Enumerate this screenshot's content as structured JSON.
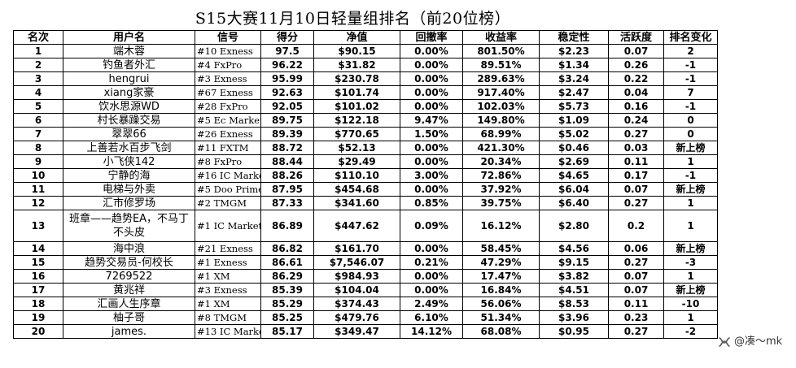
{
  "title": "S15大赛11月10日轻量组排名（前20位榜）",
  "headers": [
    "名次",
    "用户名",
    "信号",
    "得分",
    "净值",
    "回撤率",
    "收益率",
    "稳定性",
    "活跃度",
    "排名变化"
  ],
  "rows": [
    {
      "rank": "1",
      "user": "端木蓉",
      "signal": "#10 Exness",
      "score": "97.5",
      "equity": "$90.15",
      "drawdown": "0.00%",
      "return": "801.50%",
      "stability": "$2.23",
      "activity": "0.07",
      "change": "2"
    },
    {
      "rank": "2",
      "user": "钓鱼者外汇",
      "signal": "#4 FxPro",
      "score": "96.22",
      "equity": "$31.82",
      "drawdown": "0.00%",
      "return": "89.51%",
      "stability": "$1.34",
      "activity": "0.26",
      "change": "-1"
    },
    {
      "rank": "3",
      "user": "hengrui",
      "signal": "#3 Exness",
      "score": "95.99",
      "equity": "$230.78",
      "drawdown": "0.00%",
      "return": "289.63%",
      "stability": "$3.24",
      "activity": "0.22",
      "change": "-1"
    },
    {
      "rank": "4",
      "user": "xiang家豪",
      "signal": "#67 Exness",
      "score": "92.63",
      "equity": "$101.74",
      "drawdown": "0.00%",
      "return": "917.40%",
      "stability": "$2.47",
      "activity": "0.04",
      "change": "7"
    },
    {
      "rank": "5",
      "user": "饮水思源WD",
      "signal": "#28 FxPro",
      "score": "92.05",
      "equity": "$101.02",
      "drawdown": "0.00%",
      "return": "102.03%",
      "stability": "$5.73",
      "activity": "0.16",
      "change": "-1"
    },
    {
      "rank": "6",
      "user": "村长暴躁交易",
      "signal": "#5 Ec Markets",
      "score": "89.75",
      "equity": "$122.18",
      "drawdown": "9.47%",
      "return": "149.80%",
      "stability": "$1.09",
      "activity": "0.24",
      "change": "0"
    },
    {
      "rank": "7",
      "user": "翠翠66",
      "signal": "#26 Exness",
      "score": "89.39",
      "equity": "$770.65",
      "drawdown": "1.50%",
      "return": "68.99%",
      "stability": "$5.02",
      "activity": "0.27",
      "change": "0"
    },
    {
      "rank": "8",
      "user": "上善若水百步飞剑",
      "signal": "#11 FXTM",
      "score": "88.72",
      "equity": "$52.13",
      "drawdown": "0.00%",
      "return": "421.30%",
      "stability": "$0.46",
      "activity": "0.03",
      "change": "新上榜"
    },
    {
      "rank": "9",
      "user": "小飞侠142",
      "signal": "#8 FxPro",
      "score": "88.44",
      "equity": "$29.49",
      "drawdown": "0.00%",
      "return": "20.34%",
      "stability": "$2.69",
      "activity": "0.11",
      "change": "1"
    },
    {
      "rank": "10",
      "user": "宁静的海",
      "signal": "#16 IC Markets",
      "score": "88.26",
      "equity": "$110.10",
      "drawdown": "3.00%",
      "return": "72.86%",
      "stability": "$4.65",
      "activity": "0.17",
      "change": "-1"
    },
    {
      "rank": "11",
      "user": "电梯与外卖",
      "signal": "#5 Doo Prime",
      "score": "87.95",
      "equity": "$454.68",
      "drawdown": "0.00%",
      "return": "37.92%",
      "stability": "$6.04",
      "activity": "0.07",
      "change": "新上榜"
    },
    {
      "rank": "12",
      "user": "汇市修罗场",
      "signal": "#2 TMGM",
      "score": "87.33",
      "equity": "$341.60",
      "drawdown": "0.85%",
      "return": "39.75%",
      "stability": "$6.40",
      "activity": "0.27",
      "change": "1"
    },
    {
      "rank": "13",
      "user": "班章——趋势EA，不马丁不头皮",
      "signal": "#1 IC Markets",
      "score": "86.89",
      "equity": "$447.62",
      "drawdown": "0.09%",
      "return": "16.12%",
      "stability": "$2.80",
      "activity": "0.2",
      "change": "1"
    },
    {
      "rank": "14",
      "user": "海中浪",
      "signal": "#21 Exness",
      "score": "86.82",
      "equity": "$161.70",
      "drawdown": "0.00%",
      "return": "58.45%",
      "stability": "$4.56",
      "activity": "0.06",
      "change": "新上榜"
    },
    {
      "rank": "15",
      "user": "趋势交易员-何校长",
      "signal": "#1 Exness",
      "score": "86.61",
      "equity": "$7,546.07",
      "drawdown": "0.21%",
      "return": "47.29%",
      "stability": "$9.15",
      "activity": "0.27",
      "change": "-3"
    },
    {
      "rank": "16",
      "user": "7269522",
      "signal": "#1 XM",
      "score": "86.29",
      "equity": "$984.93",
      "drawdown": "0.00%",
      "return": "17.47%",
      "stability": "$3.82",
      "activity": "0.07",
      "change": "1"
    },
    {
      "rank": "17",
      "user": "黄兆祥",
      "signal": "#3 Exness",
      "score": "85.39",
      "equity": "$104.04",
      "drawdown": "0.00%",
      "return": "16.84%",
      "stability": "$4.51",
      "activity": "0.07",
      "change": "新上榜"
    },
    {
      "rank": "18",
      "user": "汇画人生序章",
      "signal": "#1 XM",
      "score": "85.29",
      "equity": "$374.43",
      "drawdown": "2.49%",
      "return": "56.06%",
      "stability": "$8.53",
      "activity": "0.11",
      "change": "-10"
    },
    {
      "rank": "19",
      "user": "柚子哥",
      "signal": "#8 TMGM",
      "score": "85.25",
      "equity": "$479.76",
      "drawdown": "6.10%",
      "return": "51.34%",
      "stability": "$3.96",
      "activity": "0.23",
      "change": "1"
    },
    {
      "rank": "20",
      "user": "james.",
      "signal": "#13 IC Markets",
      "score": "85.17",
      "equity": "$349.47",
      "drawdown": "14.12%",
      "return": "68.08%",
      "stability": "$0.95",
      "activity": "0.27",
      "change": "-2"
    }
  ],
  "watermark": {
    "text": "@凑～mk",
    "icon": "wechat-channel-icon"
  }
}
